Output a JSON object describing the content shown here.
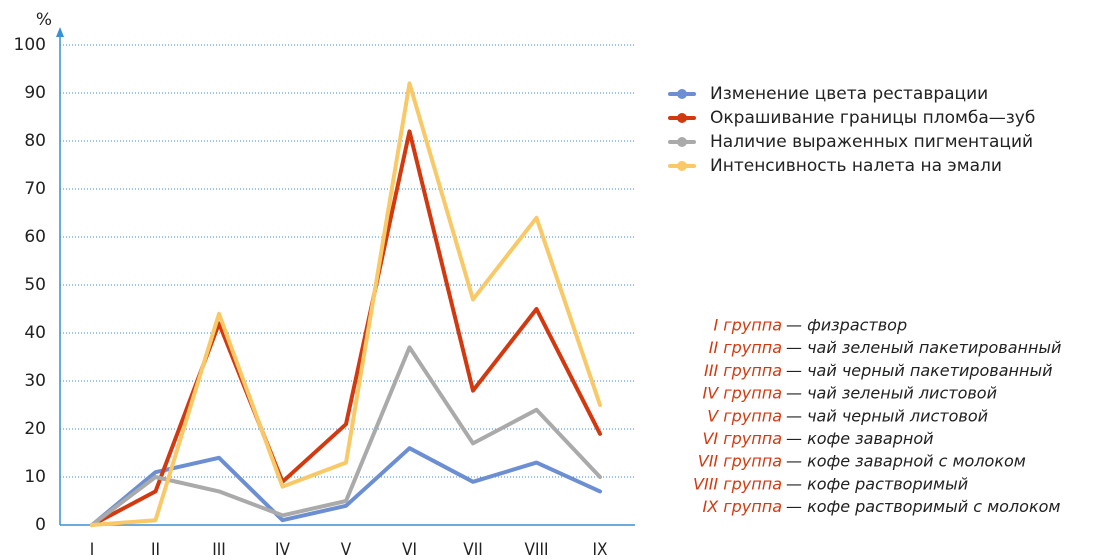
{
  "chart_data": {
    "type": "line",
    "y_label": "%",
    "categories": [
      "I",
      "II",
      "III",
      "IV",
      "V",
      "VI",
      "VII",
      "VIII",
      "IX"
    ],
    "series": [
      {
        "name": "Изменение цвета реставрации",
        "color": "#6b8fd2",
        "values": [
          0,
          11,
          14,
          1,
          4,
          16,
          9,
          13,
          7
        ]
      },
      {
        "name": "Окрашивание границы пломба—зуб",
        "color": "#d3390f",
        "values": [
          0,
          7,
          42,
          9,
          21,
          82,
          28,
          45,
          19
        ]
      },
      {
        "name": "Наличие выраженных пигментаций",
        "color": "#aaaaaa",
        "values": [
          0,
          10,
          7,
          2,
          5,
          37,
          17,
          24,
          10
        ]
      },
      {
        "name": "Интенсивность налета на эмали",
        "color": "#f8c966",
        "values": [
          0,
          1,
          44,
          8,
          13,
          92,
          47,
          64,
          25
        ]
      }
    ],
    "ylim": [
      0,
      100
    ],
    "yticks": [
      0,
      10,
      20,
      30,
      40,
      50,
      60,
      70,
      80,
      90,
      100
    ],
    "grid": true,
    "notes": [
      {
        "group": "I группа",
        "desc": "— физраствор"
      },
      {
        "group": "II группа",
        "desc": "— чай зеленый пакетированный"
      },
      {
        "group": "III группа",
        "desc": "— чай черный пакетированный"
      },
      {
        "group": "IV группа",
        "desc": "— чай зеленый листовой"
      },
      {
        "group": "V группа",
        "desc": "— чай черный листовой"
      },
      {
        "group": "VI группа",
        "desc": "— кофе заварной"
      },
      {
        "group": "VII группа",
        "desc": "— кофе заварной с молоком"
      },
      {
        "group": "VIII группа",
        "desc": "— кофе растворимый"
      },
      {
        "group": "IX группа",
        "desc": "— кофе растворимый с молоком"
      }
    ]
  }
}
